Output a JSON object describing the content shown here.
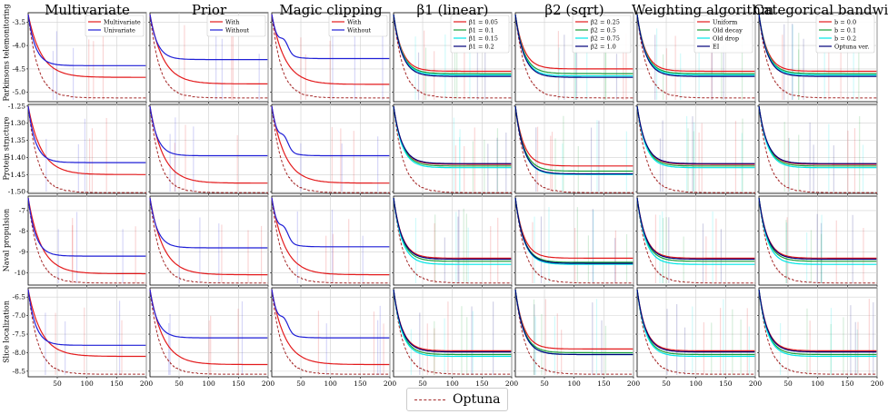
{
  "chart_data": {
    "type": "line",
    "x_ticks": [
      50,
      100,
      150,
      200
    ],
    "x_range": [
      1,
      200
    ],
    "columns": [
      {
        "title": "Multivariate",
        "legend": [
          "Multivariate",
          "Univariate"
        ],
        "colors": [
          "#e31a1c",
          "#1f1fd6"
        ],
        "style": "pair"
      },
      {
        "title": "Prior",
        "legend": [
          "With",
          "Without"
        ],
        "colors": [
          "#e31a1c",
          "#1f1fd6"
        ],
        "style": "pair"
      },
      {
        "title": "Magic clipping",
        "legend": [
          "With",
          "Without"
        ],
        "colors": [
          "#e31a1c",
          "#1f1fd6"
        ],
        "style": "pair-clip"
      },
      {
        "title": "β1 (linear)",
        "legend": [
          "β1 = 0.05",
          "β1 = 0.1",
          "β1 = 0.15",
          "β1 = 0.2"
        ],
        "colors": [
          "#e31a1c",
          "#1a9e3a",
          "#00e5e5",
          "#00007a"
        ],
        "style": "four"
      },
      {
        "title": "β2 (sqrt)",
        "legend": [
          "β2 = 0.25",
          "β2 = 0.5",
          "β2 = 0.75",
          "β2 = 1.0"
        ],
        "colors": [
          "#e31a1c",
          "#1a9e3a",
          "#00e5e5",
          "#00007a"
        ],
        "style": "four-spread"
      },
      {
        "title": "Weighting algorithm",
        "legend": [
          "Uniform",
          "Old decay",
          "Old drop",
          "EI"
        ],
        "colors": [
          "#e31a1c",
          "#1a9e3a",
          "#00e5e5",
          "#00007a"
        ],
        "style": "four"
      },
      {
        "title": "Categorical bandwidth: b",
        "legend": [
          "b = 0.0",
          "b = 0.1",
          "b = 0.2",
          "Optuna ver."
        ],
        "colors": [
          "#e31a1c",
          "#1a9e3a",
          "#00e5e5",
          "#00007a"
        ],
        "style": "four"
      }
    ],
    "rows": [
      {
        "label": "Parkinsons telemonitoring",
        "y_range": [
          -5.2,
          -3.3
        ],
        "y_ticks": [
          "-3.5",
          "-4.0",
          "-4.5",
          "-5.0"
        ],
        "y_tick_values": [
          -3.5,
          -4.0,
          -4.5,
          -5.0
        ],
        "final": {
          "pair": [
            -4.68,
            -4.43
          ],
          "prior": [
            -4.82,
            -4.3
          ],
          "clip": [
            -4.83,
            -4.28
          ],
          "four": [
            -4.55,
            -4.6,
            -4.63,
            -4.66
          ],
          "four-spread": [
            -4.5,
            -4.6,
            -4.65,
            -4.68
          ],
          "optuna": -5.12
        }
      },
      {
        "label": "Protein structure",
        "y_range": [
          -1.505,
          -1.245
        ],
        "y_ticks": [
          "-1.25",
          "-1.30",
          "-1.35",
          "-1.40",
          "-1.45",
          "-1.50"
        ],
        "y_tick_values": [
          -1.25,
          -1.3,
          -1.35,
          -1.4,
          -1.45,
          -1.5
        ],
        "final": {
          "pair": [
            -1.45,
            -1.415
          ],
          "prior": [
            -1.475,
            -1.395
          ],
          "clip": [
            -1.475,
            -1.395
          ],
          "four": [
            -1.42,
            -1.425,
            -1.43,
            -1.418
          ],
          "four-spread": [
            -1.425,
            -1.44,
            -1.45,
            -1.448
          ],
          "optuna": -1.503
        }
      },
      {
        "label": "Naval propulsion",
        "y_range": [
          -10.6,
          -6.3
        ],
        "y_ticks": [
          "-7",
          "-8",
          "-9",
          "-10"
        ],
        "y_tick_values": [
          -7,
          -8,
          -9,
          -10
        ],
        "final": {
          "pair": [
            -10.05,
            -9.2
          ],
          "prior": [
            -10.1,
            -8.8
          ],
          "clip": [
            -10.1,
            -8.75
          ],
          "four": [
            -9.3,
            -9.45,
            -9.6,
            -9.35
          ],
          "four-spread": [
            -9.3,
            -9.5,
            -9.6,
            -9.55
          ],
          "optuna": -10.5
        }
      },
      {
        "label": "Slice localization",
        "y_range": [
          -8.65,
          -6.25
        ],
        "y_ticks": [
          "-6.5",
          "-7.0",
          "-7.5",
          "-8.0",
          "-8.5"
        ],
        "y_tick_values": [
          -6.5,
          -7.0,
          -7.5,
          -8.0,
          -8.5
        ],
        "final": {
          "pair": [
            -8.1,
            -7.8
          ],
          "prior": [
            -8.32,
            -7.6
          ],
          "clip": [
            -8.32,
            -7.6
          ],
          "four": [
            -7.95,
            -8.05,
            -8.1,
            -7.98
          ],
          "four-spread": [
            -7.9,
            -8.0,
            -8.05,
            -8.05
          ],
          "optuna": -8.58
        }
      }
    ],
    "baseline_legend": "Optuna",
    "baseline_color": "#a52a2a"
  }
}
